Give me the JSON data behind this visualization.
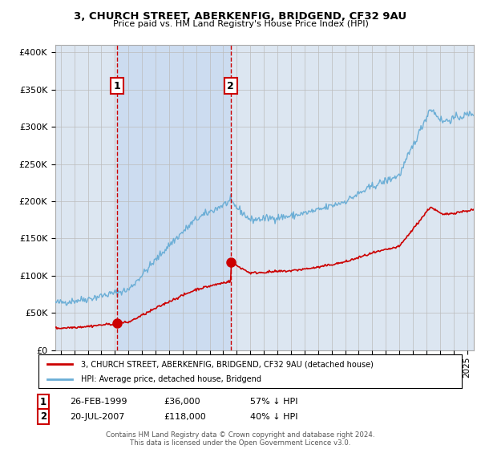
{
  "title_line1": "3, CHURCH STREET, ABERKENFIG, BRIDGEND, CF32 9AU",
  "title_line2": "Price paid vs. HM Land Registry's House Price Index (HPI)",
  "legend_label1": "3, CHURCH STREET, ABERKENFIG, BRIDGEND, CF32 9AU (detached house)",
  "legend_label2": "HPI: Average price, detached house, Bridgend",
  "transaction1_date": "26-FEB-1999",
  "transaction1_price": "£36,000",
  "transaction1_hpi": "57% ↓ HPI",
  "transaction1_year": 1999.15,
  "transaction1_value": 36000,
  "transaction2_date": "20-JUL-2007",
  "transaction2_price": "£118,000",
  "transaction2_hpi": "40% ↓ HPI",
  "transaction2_year": 2007.55,
  "transaction2_value": 118000,
  "footer": "Contains HM Land Registry data © Crown copyright and database right 2024.\nThis data is licensed under the Open Government Licence v3.0.",
  "ylim": [
    0,
    410000
  ],
  "xlim_start": 1994.6,
  "xlim_end": 2025.5,
  "hpi_color": "#6baed6",
  "price_color": "#cc0000",
  "bg_color": "#dce6f1",
  "shade_color": "#c6d9f0",
  "plot_bg": "#ffffff",
  "grid_color": "#bbbbbb"
}
